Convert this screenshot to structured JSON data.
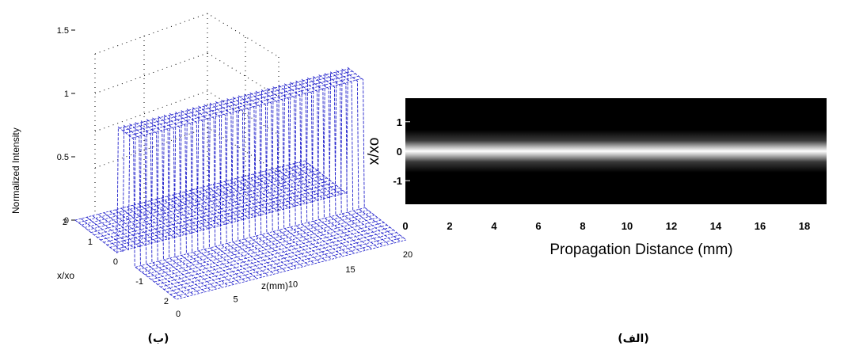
{
  "figure": {
    "caption_left": "(ب)",
    "caption_right": "(الف)"
  },
  "chart_data": [
    {
      "type": "surface",
      "xlabel": "z(mm)",
      "ylabel": "x/xo",
      "zlabel": "Normalized Intensity",
      "x_ticks": [
        "0",
        "5",
        "10",
        "15",
        "20"
      ],
      "y_ticks": [
        "2",
        "1",
        "0",
        "-1",
        "2"
      ],
      "z_ticks": [
        "0",
        "0.5",
        "1",
        "1.5"
      ],
      "xlim": [
        0,
        20
      ],
      "ylim": [
        -2,
        2
      ],
      "zlim": [
        0,
        2
      ],
      "profile": {
        "shape": "flat-top",
        "peak": 1,
        "half_width_x_over_xo": 0.35,
        "z_start": 0,
        "z_end": 20
      },
      "mesh_color": "#2222cc",
      "grid": true
    },
    {
      "type": "heatmap",
      "xlabel": "Propagation Distance (mm)",
      "ylabel": "x/xo",
      "x_ticks": [
        "0",
        "2",
        "4",
        "6",
        "8",
        "10",
        "12",
        "14",
        "16",
        "18"
      ],
      "y_ticks": [
        "1",
        "0",
        "-1"
      ],
      "xlim": [
        0,
        19
      ],
      "ylim": [
        -1.8,
        1.8
      ],
      "beam": {
        "center": 0,
        "half_width": 0.35,
        "colormap": "gray"
      }
    }
  ]
}
